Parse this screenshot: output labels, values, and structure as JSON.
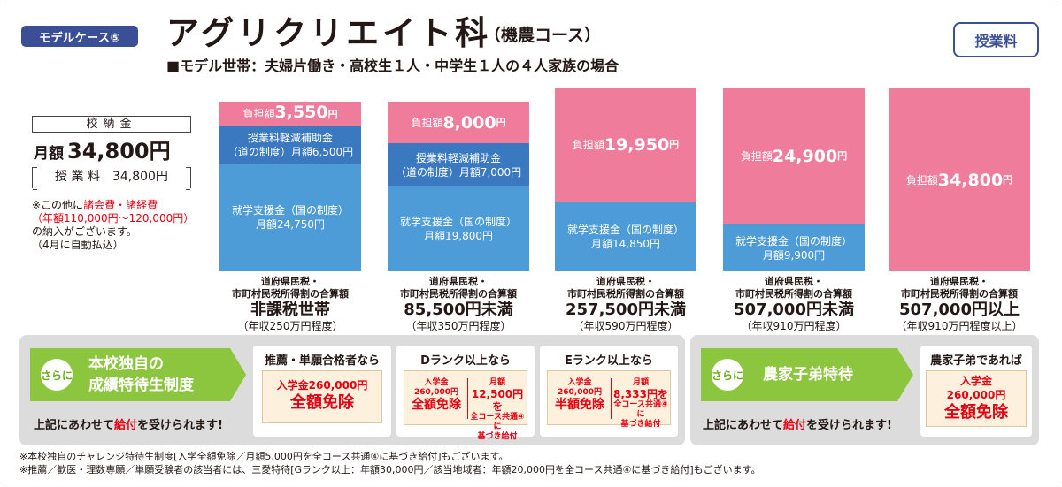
{
  "header": {
    "badge": "モデルケース⑤",
    "title": "アグリクリエイト科",
    "title_sub": "（機農コース）",
    "subtitle": "■モデル世帯：夫婦片働き・高校生１人・中学生１人の４人家族の場合",
    "fee_button": "授業料"
  },
  "nokin": {
    "label": "校納金",
    "monthly_prefix": "月額",
    "monthly_value": "34,800円",
    "tuition": "授 業 料　34,800円",
    "note_1": "※この他に",
    "note_red_1": "諸会費・諸経費",
    "note_red_2": "（年額110,000円〜120,000円）",
    "note_2": "の納入がございます。",
    "note_3": "（4月に自動払込）"
  },
  "bars": [
    {
      "burden_label": "負担額",
      "burden_amount": "3,550",
      "burden_yen": "円",
      "reduction_1": "授業料軽減補助金",
      "reduction_2": "（道の制度）月額6,500円",
      "support_1": "就学支援金（国の制度）",
      "support_2": "月額24,750円",
      "income_1": "道府県民税・",
      "income_2": "市町村民税所得割の合算額",
      "income_main": "非課税世帯",
      "income_note": "（年収250万円程度）"
    },
    {
      "burden_label": "負担額",
      "burden_amount": "8,000",
      "burden_yen": "円",
      "reduction_1": "授業料軽減補助金",
      "reduction_2": "（道の制度）月額7,000円",
      "support_1": "就学支援金（国の制度）",
      "support_2": "月額19,800円",
      "income_1": "道府県民税・",
      "income_2": "市町村民税所得割の合算額",
      "income_main": "85,500円未満",
      "income_note": "（年収350万円程度）"
    },
    {
      "burden_label": "負担額",
      "burden_amount": "19,950",
      "burden_yen": "円",
      "support_1": "就学支援金（国の制度）",
      "support_2": "月額14,850円",
      "income_1": "道府県民税・",
      "income_2": "市町村民税所得割の合算額",
      "income_main": "257,500円未満",
      "income_note": "（年収590万円程度）"
    },
    {
      "burden_label": "負担額",
      "burden_amount": "24,900",
      "burden_yen": "円",
      "support_1": "就学支援金（国の制度）",
      "support_2": "月額9,900円",
      "income_1": "道府県民税・",
      "income_2": "市町村民税所得割の合算額",
      "income_main": "507,000円未満",
      "income_note": "（年収910万円程度）"
    },
    {
      "burden_label": "負担額",
      "burden_amount": "34,800",
      "burden_yen": "円",
      "income_1": "道府県民税・",
      "income_2": "市町村民税所得割の合算額",
      "income_main": "507,000円以上",
      "income_note": "（年収910万円程度以上）"
    }
  ],
  "bottom_left": {
    "sarani": "さらに",
    "title_1": "本校独自の",
    "title_2": "成績特待生制度",
    "note_pre": "上記にあわせて",
    "note_red": "給付",
    "note_post": "を受けられます!",
    "card1": {
      "head": "推薦・単願合格者なら",
      "l1": "入学金260,000円",
      "l2": "全額免除"
    },
    "card2": {
      "head": "Dランク以上なら",
      "a1": "入学金",
      "a2": "260,000円",
      "a3": "全額免除",
      "b1": "月額",
      "b2": "12,500円を",
      "b3": "全コース共通④に",
      "b4": "基づき給付"
    },
    "card3": {
      "head": "Eランク以上なら",
      "a1": "入学金",
      "a2": "260,000円",
      "a3": "半額免除",
      "b1": "月額",
      "b2": "8,333円を",
      "b3": "全コース共通④に",
      "b4": "基づき給付"
    }
  },
  "bottom_right": {
    "sarani": "さらに",
    "title": "農家子弟特待",
    "note_pre": "上記にあわせて",
    "note_red": "給付",
    "note_post": "を受けられます!",
    "card": {
      "head": "農家子弟であれば",
      "l1": "入学金",
      "l2": "260,000円",
      "l3": "全額免除"
    }
  },
  "footnotes": [
    "※本校独自のチャレンジ特待生制度[入学全額免除／月額5,000円を全コース共通④に基づき給付]もございます。",
    "※推薦／歓医・理数専願／単願受験者の該当者には、三愛特待[Gランク以上：年額30,000円／該当地域者：年額20,000円を全コース共通④に基づき給付]もございます。"
  ],
  "colors": {
    "navy": "#3a4f95",
    "pink": "#f07c9c",
    "blue": "#4d9bd7",
    "dark_blue": "#3a78c0",
    "green": "#8cc63f",
    "red": "#e60012"
  }
}
